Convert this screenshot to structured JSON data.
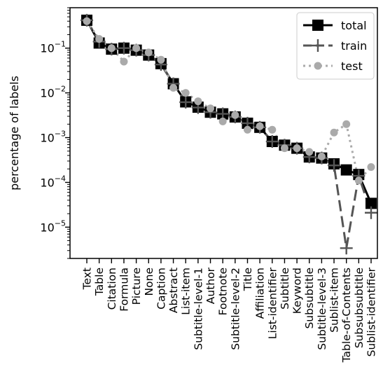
{
  "chart_data": {
    "type": "line",
    "yscale": "log",
    "ylabel": "percentage of labels",
    "xlabel": "",
    "ylim": [
      2e-06,
      0.8
    ],
    "yticks": [
      {
        "value": 0.1,
        "base": "10",
        "exp": "−1"
      },
      {
        "value": 0.01,
        "base": "10",
        "exp": "−2"
      },
      {
        "value": 0.001,
        "base": "10",
        "exp": "−3"
      },
      {
        "value": 0.0001,
        "base": "10",
        "exp": "−4"
      },
      {
        "value": 1e-05,
        "base": "10",
        "exp": "−5"
      }
    ],
    "categories": [
      "Text",
      "Table",
      "Citation",
      "Formula",
      "Picture",
      "None",
      "Caption",
      "Abstract",
      "List-item",
      "Subtitle-level-1",
      "Author",
      "Footnote",
      "Subtitle-level-2",
      "Title",
      "Affiliation",
      "List-identifier",
      "Subtitle",
      "Keyword",
      "Subsubtitle",
      "Subtitle-level-3",
      "Sublist-item",
      "Table-of-Contents",
      "Subsubsubtitle",
      "Sublist-identifier"
    ],
    "series": [
      {
        "name": "total",
        "color": "#000000",
        "marker": "square",
        "linestyle": "solid",
        "values": [
          0.42,
          0.13,
          0.095,
          0.1,
          0.09,
          0.07,
          0.045,
          0.016,
          0.0063,
          0.0048,
          0.0037,
          0.0034,
          0.0029,
          0.0021,
          0.0017,
          0.00082,
          0.00068,
          0.00058,
          0.00037,
          0.00035,
          0.00026,
          0.00019,
          0.00015,
          3.4e-05
        ]
      },
      {
        "name": "train",
        "color": "#555555",
        "marker": "plus",
        "linestyle": "dashed",
        "values": [
          0.42,
          0.14,
          0.095,
          0.1,
          0.09,
          0.07,
          0.043,
          0.016,
          0.0062,
          0.0047,
          0.0037,
          0.0034,
          0.0029,
          0.0021,
          0.0017,
          0.00082,
          0.00068,
          0.00058,
          0.00037,
          0.00035,
          0.00024,
          3.4e-06,
          0.00014,
          2.1e-05
        ]
      },
      {
        "name": "test",
        "color": "#aaaaaa",
        "marker": "circle",
        "linestyle": "dotted",
        "values": [
          0.4,
          0.16,
          0.1,
          0.05,
          0.1,
          0.08,
          0.055,
          0.013,
          0.01,
          0.0065,
          0.0045,
          0.0023,
          0.0032,
          0.0015,
          0.0018,
          0.0015,
          0.00058,
          0.00058,
          0.00048,
          0.00038,
          0.0013,
          0.002,
          0.00011,
          0.00022
        ]
      }
    ],
    "legend": "top-right",
    "grid": false
  }
}
